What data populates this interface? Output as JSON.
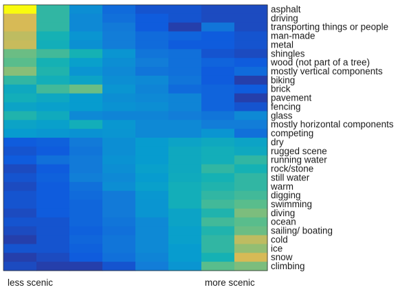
{
  "chart_data": {
    "type": "heatmap",
    "title": "",
    "colormap": "parula",
    "value_range": [
      0,
      1
    ],
    "columns": 8,
    "x_start_label": "less scenic",
    "x_end_label": "more scenic",
    "rows": [
      {
        "label": "asphalt",
        "values": [
          1.0,
          0.55,
          0.32,
          0.18,
          0.1,
          0.1,
          0.08,
          0.08
        ]
      },
      {
        "label": "driving",
        "values": [
          0.85,
          0.55,
          0.3,
          0.2,
          0.12,
          0.1,
          0.08,
          0.08
        ]
      },
      {
        "label": "transporting things or people",
        "values": [
          0.85,
          0.55,
          0.3,
          0.24,
          0.12,
          0.05,
          0.22,
          0.08
        ]
      },
      {
        "label": "man-made",
        "values": [
          0.8,
          0.5,
          0.35,
          0.25,
          0.18,
          0.15,
          0.12,
          0.1
        ]
      },
      {
        "label": "metal",
        "values": [
          0.82,
          0.48,
          0.33,
          0.25,
          0.18,
          0.12,
          0.12,
          0.1
        ]
      },
      {
        "label": "shingles",
        "values": [
          0.65,
          0.58,
          0.5,
          0.35,
          0.22,
          0.2,
          0.1,
          0.08
        ]
      },
      {
        "label": "wood (not part of a tree)",
        "values": [
          0.62,
          0.5,
          0.4,
          0.32,
          0.25,
          0.2,
          0.15,
          0.12
        ]
      },
      {
        "label": "mostly vertical components",
        "values": [
          0.7,
          0.52,
          0.35,
          0.3,
          0.22,
          0.2,
          0.12,
          0.18
        ]
      },
      {
        "label": "biking",
        "values": [
          0.55,
          0.48,
          0.42,
          0.32,
          0.3,
          0.22,
          0.12,
          0.05
        ]
      },
      {
        "label": "brick",
        "values": [
          0.45,
          0.58,
          0.65,
          0.35,
          0.28,
          0.18,
          0.15,
          0.12
        ]
      },
      {
        "label": "pavement",
        "values": [
          0.48,
          0.44,
          0.38,
          0.32,
          0.3,
          0.28,
          0.15,
          0.05
        ]
      },
      {
        "label": "fencing",
        "values": [
          0.42,
          0.4,
          0.38,
          0.34,
          0.32,
          0.28,
          0.15,
          0.1
        ]
      },
      {
        "label": "glass",
        "values": [
          0.52,
          0.46,
          0.3,
          0.28,
          0.28,
          0.25,
          0.22,
          0.3
        ]
      },
      {
        "label": "mostly horizontal components",
        "values": [
          0.42,
          0.4,
          0.48,
          0.36,
          0.3,
          0.3,
          0.25,
          0.25
        ]
      },
      {
        "label": "competing",
        "values": [
          0.38,
          0.36,
          0.34,
          0.35,
          0.3,
          0.3,
          0.35,
          0.2
        ]
      },
      {
        "label": "dry",
        "values": [
          0.12,
          0.14,
          0.24,
          0.32,
          0.38,
          0.42,
          0.45,
          0.42
        ]
      },
      {
        "label": "rugged scene",
        "values": [
          0.1,
          0.12,
          0.22,
          0.32,
          0.38,
          0.45,
          0.48,
          0.45
        ]
      },
      {
        "label": "running water",
        "values": [
          0.12,
          0.2,
          0.24,
          0.34,
          0.38,
          0.45,
          0.48,
          0.55
        ]
      },
      {
        "label": "rock/stone",
        "values": [
          0.08,
          0.12,
          0.24,
          0.32,
          0.4,
          0.45,
          0.55,
          0.5
        ]
      },
      {
        "label": "still water",
        "values": [
          0.1,
          0.14,
          0.26,
          0.3,
          0.38,
          0.46,
          0.5,
          0.55
        ]
      },
      {
        "label": "warm",
        "values": [
          0.08,
          0.12,
          0.2,
          0.32,
          0.4,
          0.48,
          0.52,
          0.55
        ]
      },
      {
        "label": "digging",
        "values": [
          0.1,
          0.12,
          0.18,
          0.24,
          0.36,
          0.48,
          0.55,
          0.58
        ]
      },
      {
        "label": "swimming",
        "values": [
          0.1,
          0.12,
          0.16,
          0.24,
          0.35,
          0.48,
          0.58,
          0.62
        ]
      },
      {
        "label": "diving",
        "values": [
          0.08,
          0.12,
          0.16,
          0.24,
          0.35,
          0.42,
          0.52,
          0.68
        ]
      },
      {
        "label": "ocean",
        "values": [
          0.1,
          0.1,
          0.16,
          0.22,
          0.3,
          0.42,
          0.58,
          0.62
        ]
      },
      {
        "label": "sailing/ boating",
        "values": [
          0.08,
          0.1,
          0.14,
          0.2,
          0.3,
          0.4,
          0.52,
          0.65
        ]
      },
      {
        "label": "cold",
        "values": [
          0.05,
          0.1,
          0.16,
          0.22,
          0.3,
          0.4,
          0.55,
          0.8
        ]
      },
      {
        "label": "ice",
        "values": [
          0.1,
          0.1,
          0.14,
          0.22,
          0.3,
          0.38,
          0.55,
          0.72
        ]
      },
      {
        "label": "snow",
        "values": [
          0.05,
          0.08,
          0.12,
          0.2,
          0.28,
          0.38,
          0.5,
          0.85
        ]
      },
      {
        "label": "climbing",
        "values": [
          0.08,
          0.05,
          0.05,
          0.1,
          0.25,
          0.35,
          0.62,
          0.68
        ]
      }
    ]
  }
}
